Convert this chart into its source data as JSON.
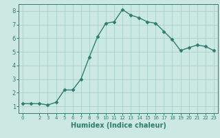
{
  "x": [
    0,
    1,
    2,
    3,
    4,
    5,
    6,
    7,
    8,
    9,
    10,
    11,
    12,
    13,
    14,
    15,
    16,
    17,
    18,
    19,
    20,
    21,
    22,
    23
  ],
  "y": [
    1.2,
    1.2,
    1.2,
    1.1,
    1.3,
    2.2,
    2.2,
    3.0,
    4.6,
    6.1,
    7.1,
    7.2,
    8.1,
    7.7,
    7.5,
    7.2,
    7.1,
    6.5,
    5.9,
    5.1,
    5.3,
    5.5,
    5.4,
    5.1
  ],
  "line_color": "#2e7d6e",
  "marker": "D",
  "markersize": 2.5,
  "linewidth": 1.0,
  "xlabel": "Humidex (Indice chaleur)",
  "xlabel_fontsize": 7,
  "ylim": [
    0.5,
    8.5
  ],
  "xlim": [
    -0.5,
    23.5
  ],
  "yticks": [
    1,
    2,
    3,
    4,
    5,
    6,
    7,
    8
  ],
  "xticks": [
    0,
    2,
    3,
    4,
    5,
    6,
    7,
    8,
    9,
    10,
    11,
    12,
    13,
    14,
    15,
    16,
    17,
    18,
    19,
    20,
    21,
    22,
    23
  ],
  "bg_color": "#cce8e2",
  "grid_color": "#aacfc9",
  "tick_color": "#2e7d6e"
}
